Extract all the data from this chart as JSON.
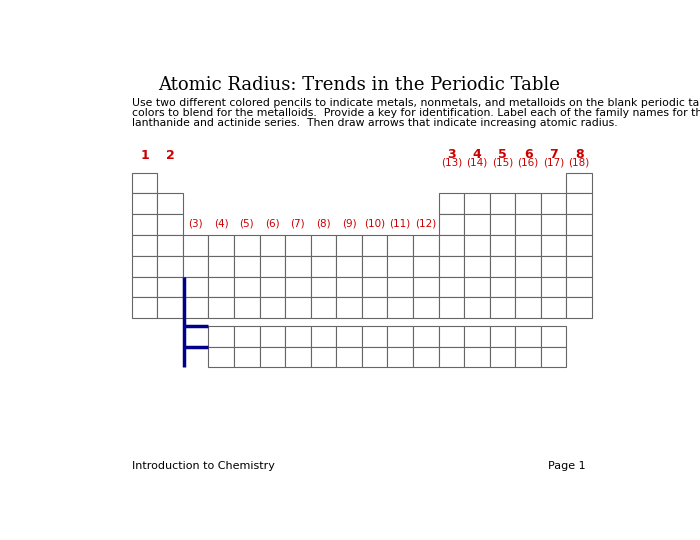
{
  "title": "Atomic Radius: Trends in the Periodic Table",
  "instruction_lines": [
    "Use two different colored pencils to indicate metals, nonmetals, and metalloids on the blank periodic table below.  Allow the two",
    "colors to blend for the metalloids.  Provide a key for identification. Label each of the family names for the groups, include the",
    "lanthanide and actinide series.  Then draw arrows that indicate increasing atomic radius."
  ],
  "footer_left": "Introduction to Chemistry",
  "footer_right": "Page 1",
  "top_labels_left": [
    "1",
    "2"
  ],
  "top_labels_right": [
    [
      "3",
      "(13)"
    ],
    [
      "4",
      "(14)"
    ],
    [
      "5",
      "(15)"
    ],
    [
      "6",
      "(16)"
    ],
    [
      "7",
      "(17)"
    ],
    [
      "8",
      "(18)"
    ]
  ],
  "mid_labels": [
    "(3)",
    "(4)",
    "(5)",
    "(6)",
    "(7)",
    "(8)",
    "(9)",
    "(10)",
    "(11)",
    "(12)"
  ],
  "cell_color": "#ffffff",
  "border_color": "#666666",
  "blue_line_color": "#00008B",
  "red_label_color": "#cc0000",
  "background_color": "#ffffff",
  "title_fontsize": 13,
  "body_fontsize": 7.8,
  "label_fontsize": 7.5
}
